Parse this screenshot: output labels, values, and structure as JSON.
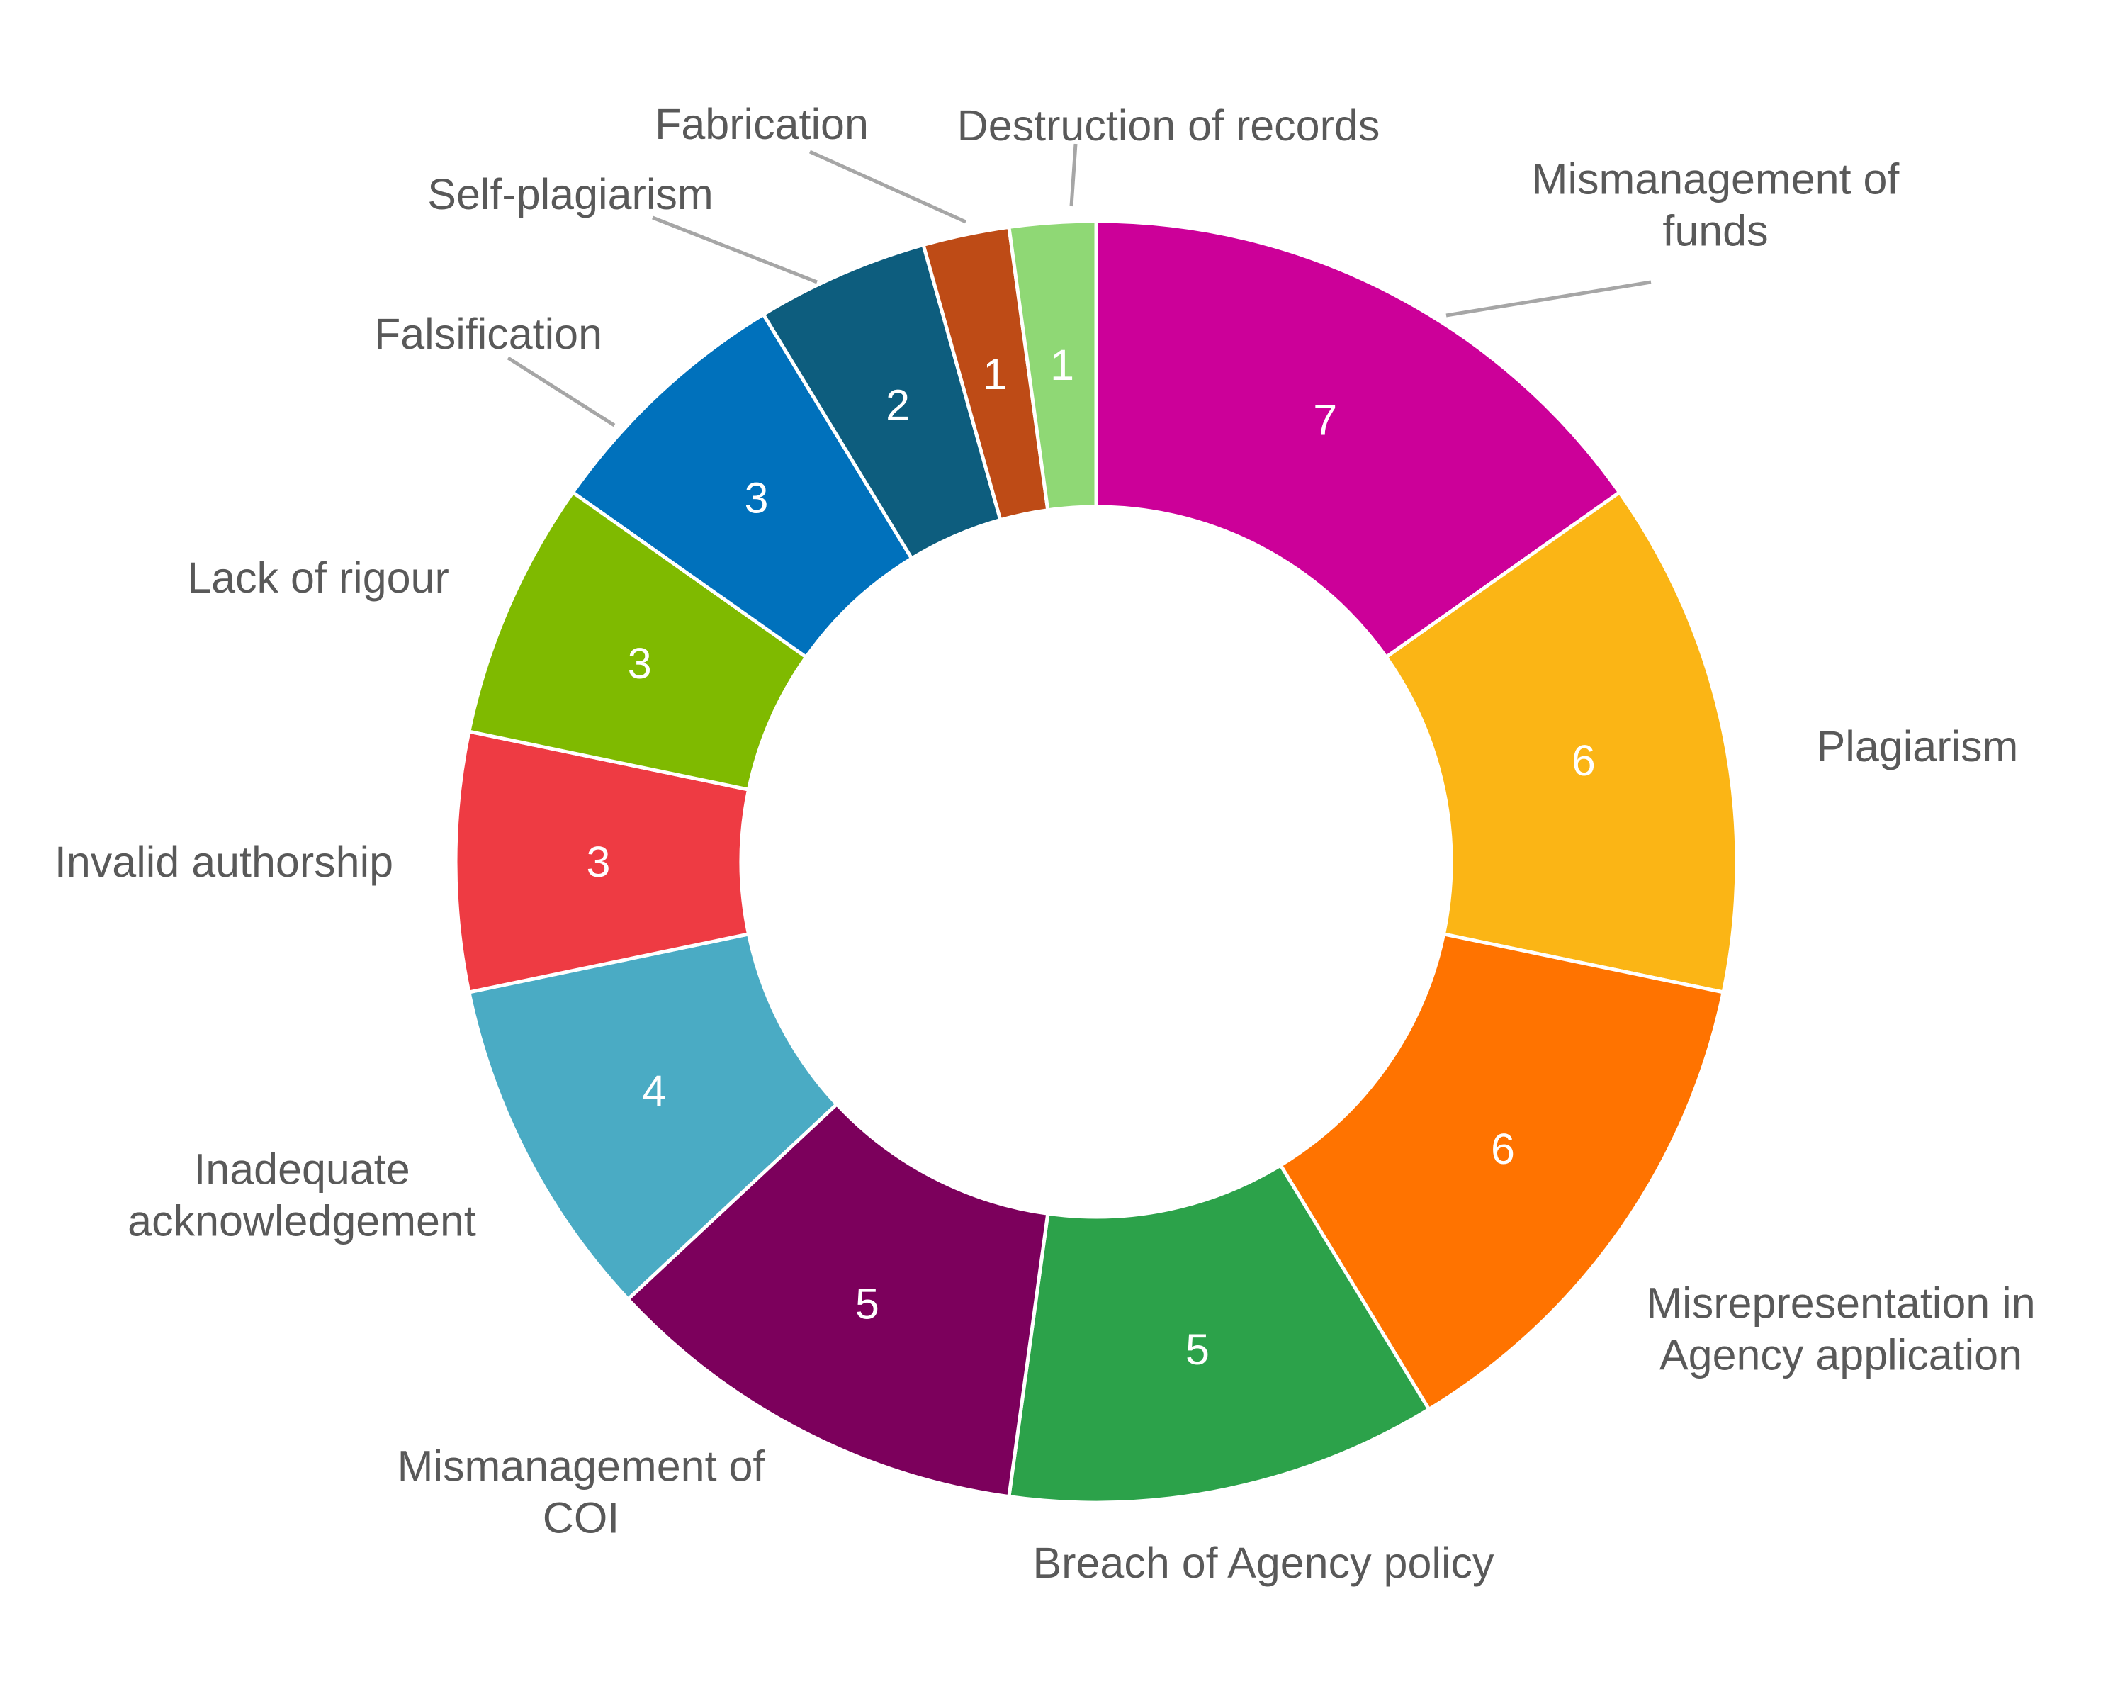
{
  "chart_data": {
    "type": "pie",
    "variant": "donut",
    "title": "",
    "legend": "none",
    "data_labels": "values inside slices, category names outside",
    "series": [
      {
        "name": "",
        "categories": [
          "Mismanagement of funds",
          "Plagiarism",
          "Misrepresentation in Agency application",
          "Breach of Agency policy",
          "Mismanagement of COI",
          "Inadequate acknowledgement",
          "Invalid authorship",
          "Lack of rigour",
          "Falsification",
          "Self-plagiarism",
          "Fabrication",
          "Destruction of records"
        ],
        "category_label_lines": [
          [
            "Mismanagement of",
            "funds"
          ],
          [
            "Plagiarism"
          ],
          [
            "Misrepresentation in",
            "Agency application"
          ],
          [
            "Breach of Agency policy"
          ],
          [
            "Mismanagement of",
            "COI"
          ],
          [
            "Inadequate",
            "acknowledgement"
          ],
          [
            "Invalid authorship"
          ],
          [
            "Lack of rigour"
          ],
          [
            "Falsification"
          ],
          [
            "Self-plagiarism"
          ],
          [
            "Fabrication"
          ],
          [
            "Destruction of records"
          ]
        ],
        "values": [
          7,
          6,
          6,
          5,
          5,
          4,
          3,
          3,
          3,
          2,
          1,
          1
        ],
        "colors": [
          "#cc0099",
          "#fbb515",
          "#ff7300",
          "#2ca24a",
          "#7c005c",
          "#4aabc4",
          "#ee3b43",
          "#7fba00",
          "#0071bc",
          "#0d5d7e",
          "#be4b16",
          "#8fd875"
        ]
      }
    ]
  }
}
